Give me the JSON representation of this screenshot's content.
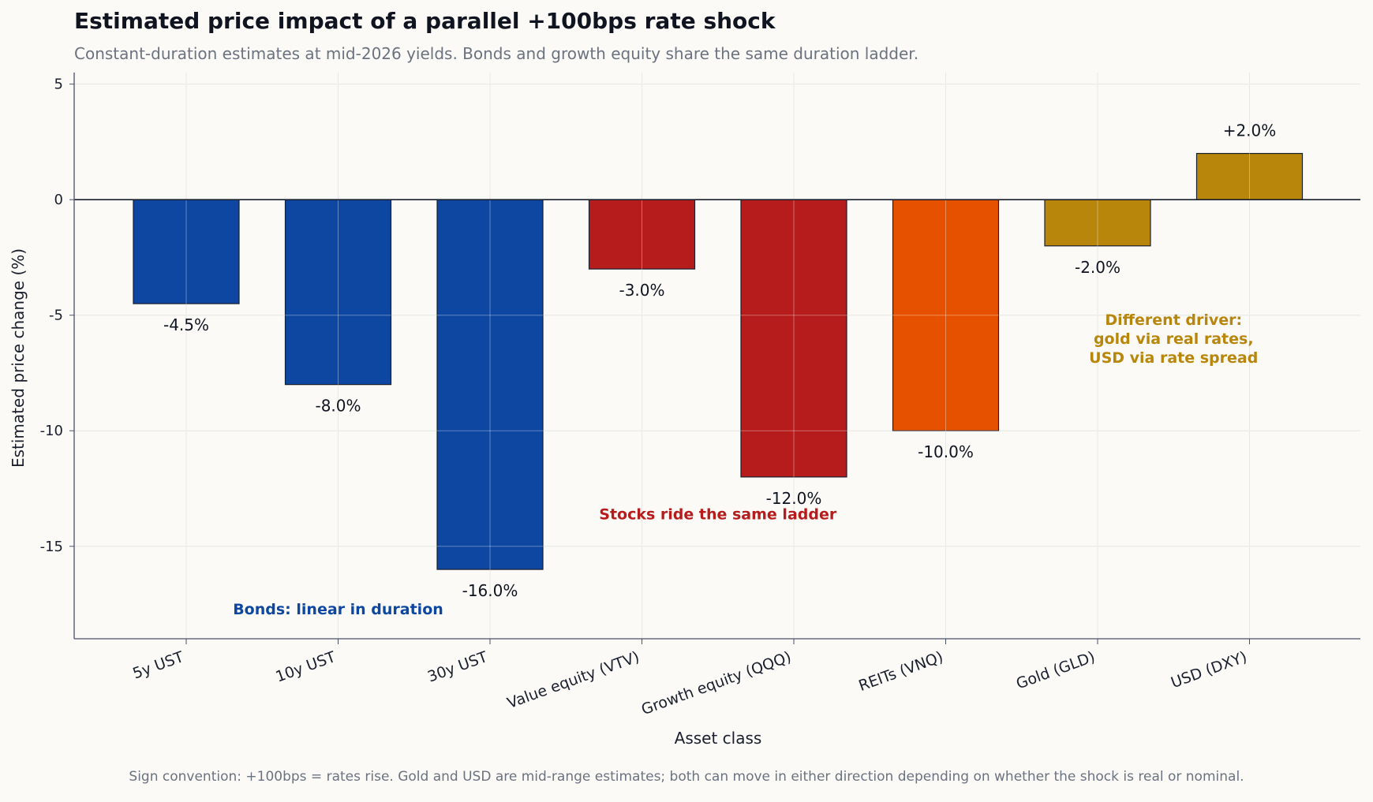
{
  "chart_data": {
    "type": "bar",
    "title": "Estimated price impact of a parallel +100bps rate shock",
    "subtitle": "Constant-duration estimates at mid-2026 yields. Bonds and growth equity share the same duration ladder.",
    "xlabel": "Asset class",
    "ylabel": "Estimated price change (%)",
    "ylim": [
      -19,
      5.5
    ],
    "yticks": [
      5,
      0,
      -5,
      -10,
      -15
    ],
    "ytick_labels": [
      "5",
      "0",
      "-5",
      "-10",
      "-15"
    ],
    "grid": true,
    "categories": [
      "5y UST",
      "10y UST",
      "30y UST",
      "Value equity (VTV)",
      "Growth equity (QQQ)",
      "REITs (VNQ)",
      "Gold (GLD)",
      "USD (DXY)"
    ],
    "values": [
      -4.5,
      -8.0,
      -16.0,
      -3.0,
      -12.0,
      -10.0,
      -2.0,
      2.0
    ],
    "data_labels": [
      "-4.5%",
      "-8.0%",
      "-16.0%",
      "-3.0%",
      "-12.0%",
      "-10.0%",
      "-2.0%",
      "+2.0%"
    ],
    "bar_colors": [
      "#0d47a1",
      "#0d47a1",
      "#0d47a1",
      "#b71c1c",
      "#b71c1c",
      "#e65100",
      "#b8860b",
      "#b8860b"
    ],
    "annotations": [
      {
        "lines": [
          "Bonds: linear in duration"
        ],
        "color": "#0d47a1",
        "x_index": 1.0,
        "y": -17.7
      },
      {
        "lines": [
          "Stocks ride the same ladder"
        ],
        "color": "#b71c1c",
        "x_index": 3.5,
        "y": -13.6
      },
      {
        "lines": [
          "Different driver:",
          "gold via real rates,",
          "USD via rate spread"
        ],
        "color": "#b8860b",
        "x_index": 6.5,
        "y": -6.0
      }
    ],
    "footer": "Sign convention: +100bps = rates rise. Gold and USD are mid-range estimates; both can move in either direction depending on whether the shock is real or nominal."
  }
}
